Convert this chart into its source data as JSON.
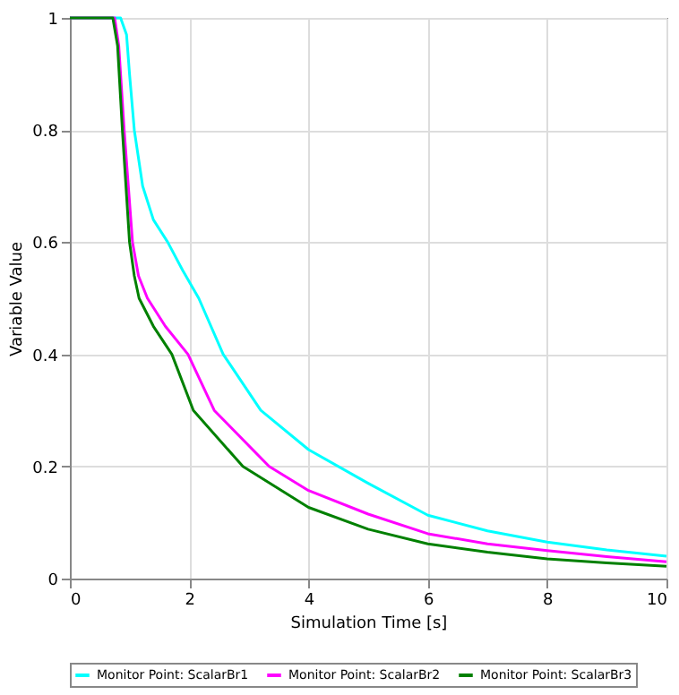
{
  "chart_data": {
    "type": "line",
    "xlabel": "Simulation Time [s]",
    "ylabel": "Variable Value",
    "xlim": [
      0,
      10
    ],
    "ylim": [
      0,
      1
    ],
    "xticks": [
      0,
      2,
      4,
      6,
      8,
      10
    ],
    "yticks": [
      0,
      0.2,
      0.4,
      0.6,
      0.8,
      1
    ],
    "grid": true,
    "legend": "bottom",
    "marker": "none",
    "line_style": "solid",
    "series": [
      {
        "name": "Monitor Point: ScalarBr1",
        "color": "#00ffff",
        "x": [
          0,
          0.85,
          0.95,
          1.0,
          1.08,
          1.22,
          1.4,
          1.64,
          1.89,
          2.16,
          2.57,
          3.2,
          4,
          5,
          6,
          7,
          8,
          9,
          10
        ],
        "values": [
          1,
          1,
          0.97,
          0.9,
          0.8,
          0.7,
          0.64,
          0.6,
          0.55,
          0.5,
          0.4,
          0.3,
          0.23,
          0.17,
          0.113,
          0.085,
          0.065,
          0.051,
          0.04
        ]
      },
      {
        "name": "Monitor Point: ScalarBr2",
        "color": "#ff00ff",
        "x": [
          0,
          0.75,
          0.82,
          0.91,
          1.05,
          1.15,
          1.3,
          1.6,
          1.98,
          2.42,
          3.34,
          4,
          5,
          6,
          7,
          8,
          9,
          10
        ],
        "values": [
          1,
          1,
          0.95,
          0.8,
          0.6,
          0.54,
          0.5,
          0.45,
          0.4,
          0.3,
          0.2,
          0.157,
          0.115,
          0.08,
          0.062,
          0.05,
          0.039,
          0.03
        ]
      },
      {
        "name": "Monitor Point: ScalarBr3",
        "color": "#008000",
        "x": [
          0,
          0.5,
          0.72,
          0.8,
          0.88,
          1.0,
          1.08,
          1.16,
          1.4,
          1.71,
          2.07,
          2.9,
          4,
          5,
          6,
          7,
          8,
          9,
          10
        ],
        "values": [
          1,
          1,
          1,
          0.95,
          0.8,
          0.6,
          0.54,
          0.5,
          0.45,
          0.4,
          0.3,
          0.2,
          0.127,
          0.088,
          0.062,
          0.047,
          0.035,
          0.028,
          0.022
        ]
      }
    ]
  }
}
